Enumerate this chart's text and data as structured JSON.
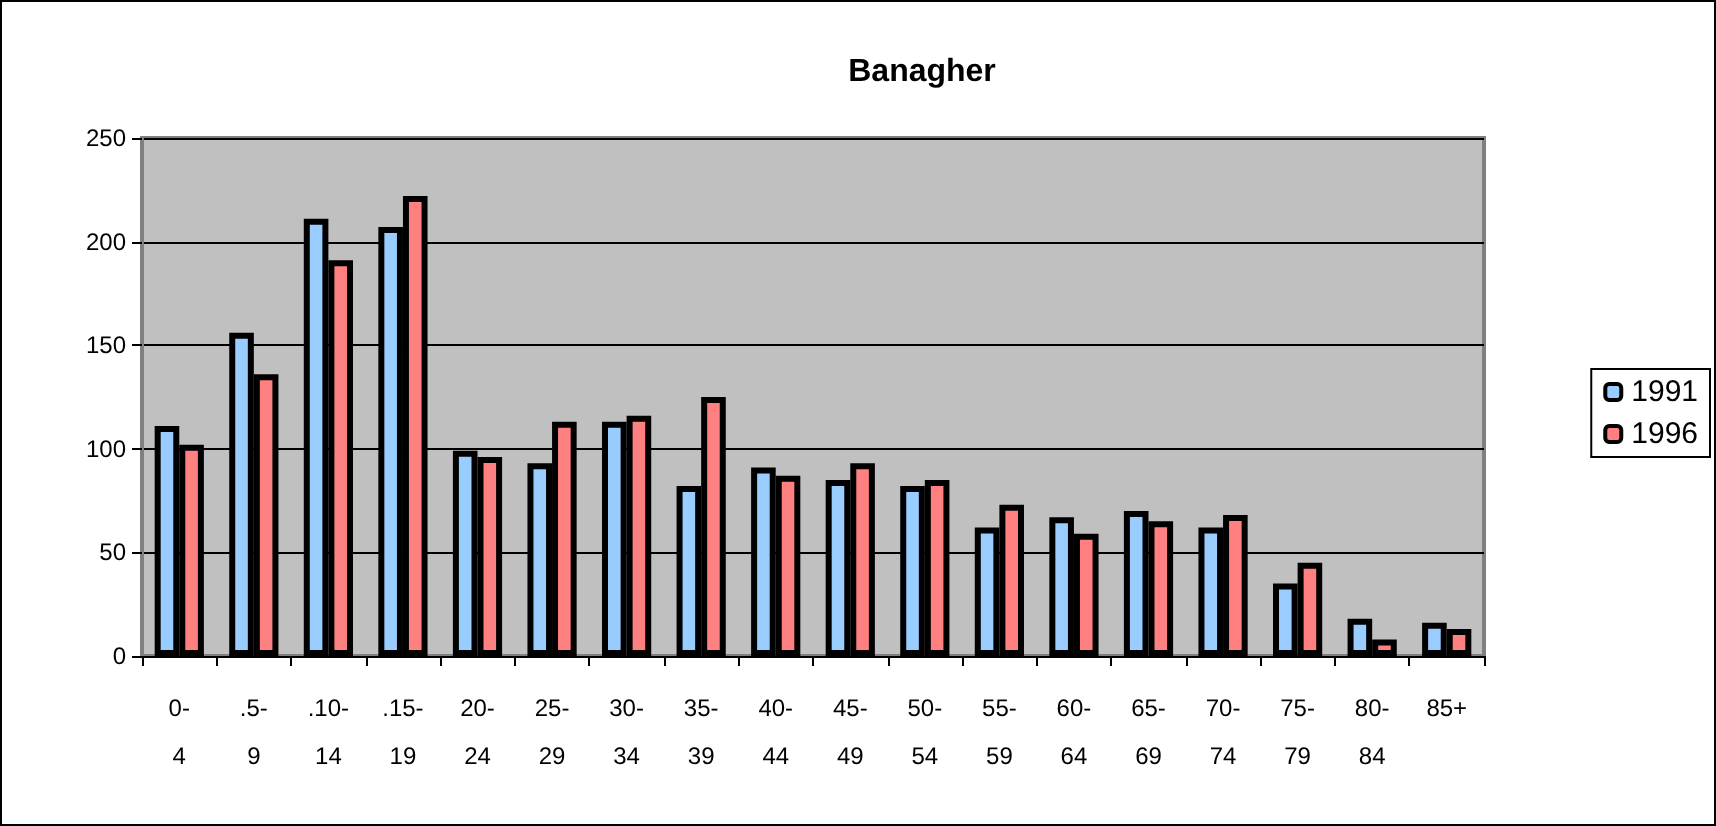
{
  "chart_data": {
    "type": "bar",
    "title": "Banagher",
    "categories": [
      "0-4",
      ".5-9",
      ".10-14",
      ".15-19",
      "20-24",
      "25-29",
      "30-34",
      "35-39",
      "40-44",
      "45-49",
      "50-54",
      "55-59",
      "60-64",
      "65-69",
      "70-74",
      "75-79",
      "80-84",
      "85+"
    ],
    "series": [
      {
        "name": "1991",
        "color": "#99ccff",
        "values": [
          111,
          156,
          211,
          207,
          99,
          93,
          113,
          82,
          91,
          85,
          82,
          62,
          67,
          70,
          62,
          35,
          18,
          16
        ]
      },
      {
        "name": "1996",
        "color": "#ff8080",
        "values": [
          102,
          136,
          191,
          222,
          96,
          113,
          116,
          125,
          87,
          93,
          85,
          73,
          59,
          65,
          68,
          45,
          8,
          13
        ]
      }
    ],
    "ylim": [
      0,
      250
    ],
    "yticks": [
      0,
      50,
      100,
      150,
      200,
      250
    ],
    "grid": "y",
    "legend": "right"
  }
}
